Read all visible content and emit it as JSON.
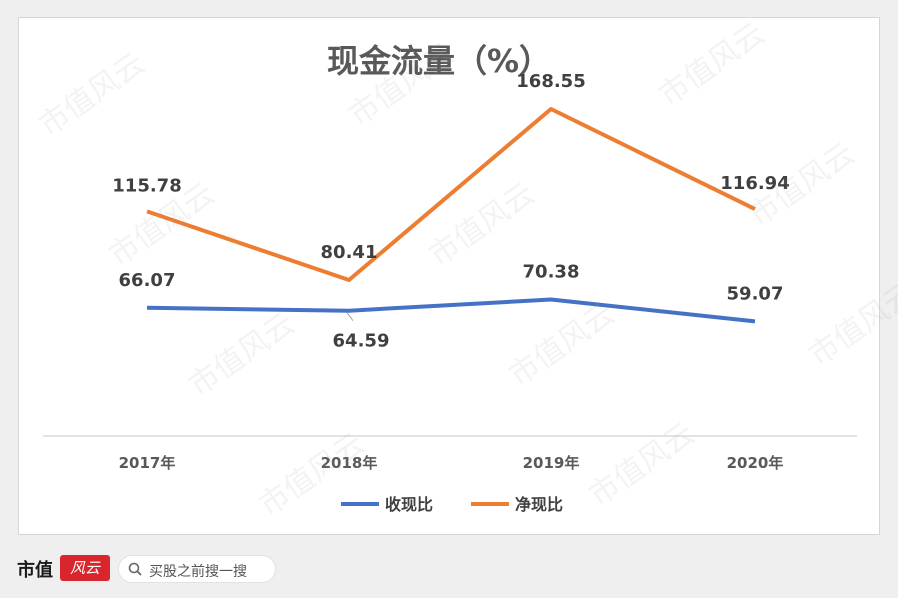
{
  "chart_data": {
    "type": "line",
    "title": "现金流量（%）",
    "categories": [
      "2017年",
      "2018年",
      "2019年",
      "2020年"
    ],
    "series": [
      {
        "name": "收现比",
        "values": [
          66.07,
          64.59,
          70.38,
          59.07
        ],
        "color": "#4472c4"
      },
      {
        "name": "净现比",
        "values": [
          115.78,
          80.41,
          168.55,
          116.94
        ],
        "color": "#ed7d31"
      }
    ],
    "value_labels": {
      "收现比": [
        "66.07",
        "64.59",
        "70.38",
        "59.07"
      ],
      "净现比": [
        "115.78",
        "80.41",
        "168.55",
        "116.94"
      ]
    },
    "ylim": [
      0,
      200
    ],
    "grid": false,
    "legend_position": "bottom"
  },
  "watermark": "市值风云",
  "footer": {
    "brand": "市值",
    "brand_logo": "风云",
    "search_placeholder": "买股之前搜一搜"
  },
  "icons": {
    "search": "search-icon"
  }
}
